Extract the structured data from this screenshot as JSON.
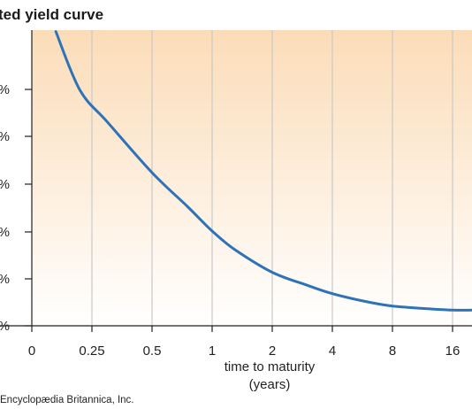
{
  "chart_data": {
    "type": "line",
    "title": "ted yield curve",
    "xlabel_line1": "time to maturity",
    "xlabel_line2": "(years)",
    "ylabel": "",
    "x_categories": [
      "0",
      "0.25",
      "0.5",
      "1",
      "2",
      "4",
      "8",
      "16"
    ],
    "y_tick_labels": [
      "%",
      "%",
      "%",
      "%",
      "%",
      "%"
    ],
    "grid": "vertical",
    "series": [
      {
        "x": [
          0.1,
          0.2,
          0.3,
          0.5,
          0.75,
          1,
          1.3,
          2,
          3,
          4,
          6,
          8,
          12,
          16,
          20
        ],
        "y": [
          5.87,
          5.02,
          4.55,
          3.82,
          3.33,
          2.97,
          2.7,
          2.37,
          2.18,
          2.06,
          1.94,
          1.88,
          1.84,
          1.82,
          1.82
        ],
        "color": "#2e72b8"
      }
    ],
    "background_gradient": [
      "#fbdcb8",
      "#ffffff"
    ]
  },
  "credit": "Encyclopædia Britannica, Inc."
}
